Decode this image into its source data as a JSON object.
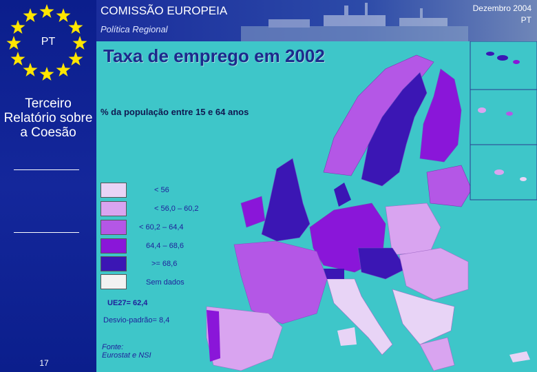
{
  "header": {
    "org": "COMISSÃO EUROPEIA",
    "subtitle": "Política Regional",
    "date": "Dezembro 2004",
    "lang": "PT"
  },
  "sidebar": {
    "flag_label": "PT",
    "title": "Terceiro Relatório sobre a Coesão",
    "page_number": "17"
  },
  "map": {
    "title": "Taxa de emprego em 2002",
    "subtitle": "% da população entre 15 e 64 anos",
    "legend": [
      {
        "label": "< 56",
        "color": "#e8d4f6"
      },
      {
        "label": "< 56,0 – 60,2",
        "color": "#d9a4f0"
      },
      {
        "label": "< 60,2 – 64,4",
        "color": "#b457e6"
      },
      {
        "label": "64,4 – 68,6",
        "color": "#8a16d9"
      },
      {
        "label": ">= 68,6",
        "color": "#3b16b4"
      },
      {
        "label": "Sem dados",
        "color": "#f2f2f2"
      }
    ],
    "eu_average": "UE27= 62,4",
    "std_dev": "Desvio-padrão= 8,4",
    "source_line1": "Fonte:",
    "source_line2": "Eurostat e NSI"
  },
  "colors": {
    "sea": "#3ec6c9",
    "sidebar": "#0b1e8c",
    "star": "#ffe600"
  }
}
